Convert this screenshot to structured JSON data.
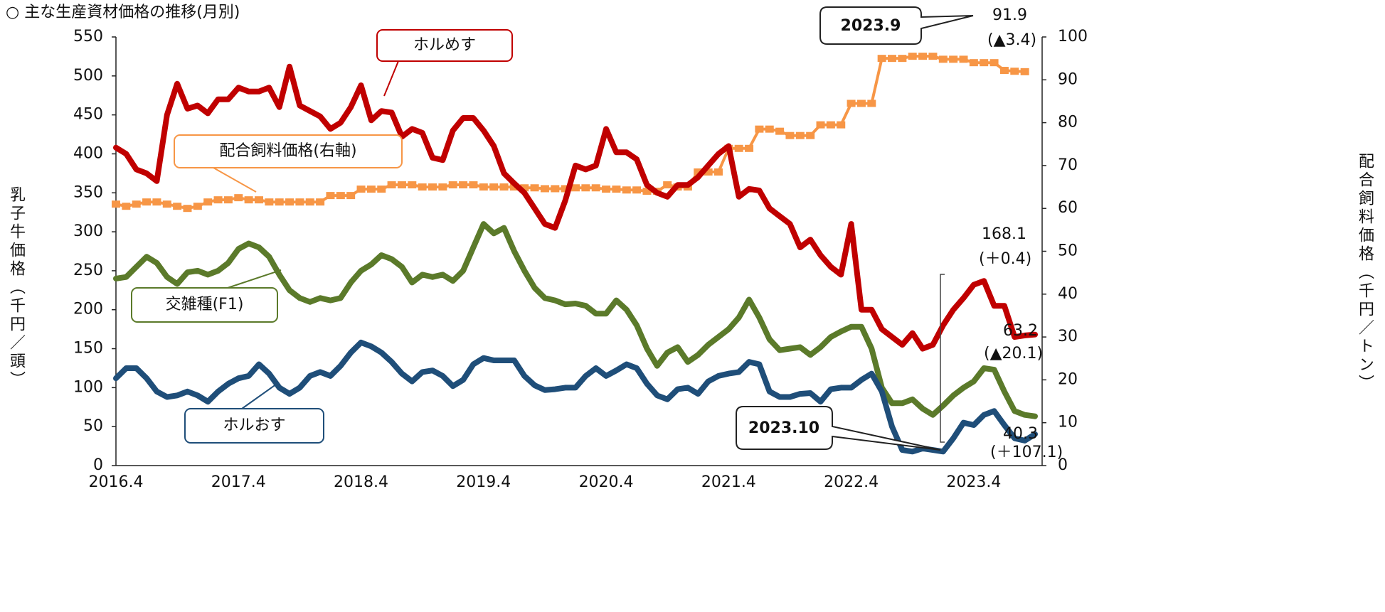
{
  "chart_data": {
    "type": "line",
    "title": "○ 主な生産資材価格の推移(月別)",
    "ylabel": "乳子牛価格（千円／頭）",
    "y2label": "配合飼料価格（千円／トン）",
    "categories": [
      "2016.4",
      null,
      null,
      null,
      null,
      null,
      null,
      null,
      null,
      null,
      null,
      null,
      "2017.4",
      null,
      null,
      null,
      null,
      null,
      null,
      null,
      null,
      null,
      null,
      null,
      "2018.4",
      null,
      null,
      null,
      null,
      null,
      null,
      null,
      null,
      null,
      null,
      null,
      "2019.4",
      null,
      null,
      null,
      null,
      null,
      null,
      null,
      null,
      null,
      null,
      null,
      "2020.4",
      null,
      null,
      null,
      null,
      null,
      null,
      null,
      null,
      null,
      null,
      null,
      "2021.4",
      null,
      null,
      null,
      null,
      null,
      null,
      null,
      null,
      null,
      null,
      null,
      "2022.4",
      null,
      null,
      null,
      null,
      null,
      null,
      null,
      null,
      null,
      null,
      null,
      "2023.4",
      null,
      null,
      null,
      null,
      null,
      null
    ],
    "ylim": [
      0,
      550
    ],
    "yticks": [
      0,
      50,
      100,
      150,
      200,
      250,
      300,
      350,
      400,
      450,
      500,
      550
    ],
    "y2lim": [
      0,
      100
    ],
    "y2ticks": [
      0,
      10,
      20,
      30,
      40,
      50,
      60,
      70,
      80,
      90,
      100
    ],
    "grid": false,
    "series": [
      {
        "name": "ホルめす",
        "color": "#c00000",
        "values": [
          408,
          400,
          380,
          375,
          365,
          450,
          490,
          458,
          462,
          452,
          470,
          470,
          485,
          480,
          480,
          485,
          460,
          512,
          462,
          455,
          448,
          432,
          440,
          460,
          488,
          443,
          455,
          453,
          422,
          432,
          427,
          395,
          392,
          430,
          446,
          446,
          430,
          410,
          375,
          362,
          350,
          330,
          310,
          305,
          340,
          385,
          380,
          385,
          432,
          402,
          402,
          393,
          360,
          350,
          345,
          360,
          360,
          370,
          385,
          400,
          410,
          345,
          355,
          353,
          330,
          320,
          310,
          280,
          290,
          270,
          255,
          245,
          310,
          200,
          200,
          175,
          165,
          155,
          170,
          150,
          155,
          180,
          200,
          215,
          232,
          237,
          205,
          205,
          165,
          167,
          168.1
        ]
      },
      {
        "name": "交雑種(F1)",
        "color": "#5b7a2a",
        "values": [
          240,
          242,
          255,
          268,
          260,
          242,
          233,
          248,
          250,
          245,
          250,
          260,
          278,
          285,
          280,
          268,
          245,
          225,
          215,
          210,
          215,
          212,
          215,
          235,
          250,
          258,
          270,
          265,
          255,
          235,
          245,
          242,
          245,
          237,
          250,
          280,
          310,
          298,
          305,
          275,
          250,
          228,
          215,
          212,
          207,
          208,
          205,
          195,
          195,
          212,
          200,
          180,
          150,
          128,
          145,
          152,
          133,
          142,
          155,
          165,
          175,
          190,
          213,
          190,
          162,
          148,
          150,
          152,
          142,
          152,
          165,
          172,
          178,
          178,
          150,
          100,
          80,
          80,
          85,
          73,
          65,
          77,
          90,
          100,
          108,
          125,
          123,
          95,
          70,
          65,
          63.2
        ]
      },
      {
        "name": "ホルおす",
        "color": "#1f4e79",
        "values": [
          112,
          125,
          125,
          112,
          95,
          88,
          90,
          95,
          90,
          82,
          95,
          105,
          112,
          115,
          130,
          118,
          100,
          92,
          100,
          115,
          120,
          115,
          128,
          145,
          158,
          153,
          145,
          133,
          118,
          108,
          120,
          122,
          115,
          102,
          110,
          130,
          138,
          135,
          135,
          135,
          115,
          103,
          97,
          98,
          100,
          100,
          115,
          125,
          115,
          122,
          130,
          125,
          105,
          90,
          85,
          98,
          100,
          92,
          108,
          115,
          118,
          120,
          133,
          130,
          95,
          88,
          88,
          92,
          93,
          82,
          98,
          100,
          100,
          110,
          118,
          95,
          50,
          20,
          18,
          22,
          20,
          18,
          35,
          55,
          52,
          65,
          70,
          52,
          35,
          32,
          40.3
        ]
      },
      {
        "name": "配合飼料価格(右軸)",
        "color": "#f79646",
        "axis": "y2",
        "values": [
          61,
          60.5,
          61,
          61.5,
          61.5,
          61,
          60.5,
          60,
          60.5,
          61.5,
          62,
          62,
          62.5,
          62,
          62,
          61.5,
          61.5,
          61.5,
          61.5,
          61.5,
          61.5,
          63,
          63,
          63,
          64.5,
          64.5,
          64.5,
          65.5,
          65.5,
          65.5,
          65,
          65,
          65,
          65.5,
          65.5,
          65.5,
          65,
          65,
          65,
          65,
          64.8,
          64.8,
          64.6,
          64.6,
          64.6,
          64.8,
          64.8,
          64.8,
          64.5,
          64.5,
          64.3,
          64.3,
          64,
          64,
          65.5,
          65,
          65,
          68.5,
          68.5,
          68.5,
          74,
          74,
          74,
          78.5,
          78.5,
          78,
          77,
          77,
          77,
          79.5,
          79.5,
          79.5,
          84.5,
          84.5,
          84.5,
          95,
          95,
          95,
          95.5,
          95.5,
          95.5,
          94.8,
          94.8,
          94.8,
          94,
          94,
          94,
          92.2,
          92,
          91.9,
          null
        ]
      }
    ],
    "annotations": [
      "2023.9",
      "91.9",
      "(▲3.4)",
      "168.1",
      "(＋0.4)",
      "63.2",
      "(▲20.1)",
      "2023.10",
      "40.3",
      "(＋107.1)"
    ]
  }
}
